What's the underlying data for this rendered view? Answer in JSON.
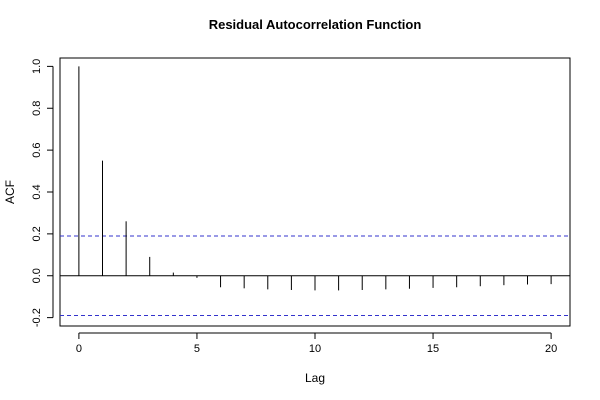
{
  "chart_data": {
    "type": "bar",
    "title": "Residual Autocorrelation Function",
    "xlabel": "Lag",
    "ylabel": "ACF",
    "xlim": [
      -0.8,
      20.8
    ],
    "ylim": [
      -0.24,
      1.04
    ],
    "x_ticks": [
      0,
      5,
      10,
      15,
      20
    ],
    "x_tick_labels": [
      "0",
      "5",
      "10",
      "15",
      "20"
    ],
    "y_ticks": [
      -0.2,
      0.0,
      0.2,
      0.4,
      0.6,
      0.8,
      1.0
    ],
    "y_tick_labels": [
      "-0.2",
      "0.0",
      "0.2",
      "0.4",
      "0.6",
      "0.8",
      "1.0"
    ],
    "lags": [
      0,
      1,
      2,
      3,
      4,
      5,
      6,
      7,
      8,
      9,
      10,
      11,
      12,
      13,
      14,
      15,
      16,
      17,
      18,
      19,
      20
    ],
    "acf": [
      1.0,
      0.55,
      0.26,
      0.09,
      0.015,
      -0.01,
      -0.055,
      -0.06,
      -0.065,
      -0.068,
      -0.07,
      -0.07,
      -0.068,
      -0.065,
      -0.062,
      -0.058,
      -0.055,
      -0.05,
      -0.045,
      -0.042,
      -0.04
    ],
    "confidence_bounds": [
      0.19,
      -0.19
    ],
    "colors": {
      "bars": "#000000",
      "confidence": "#3333cc",
      "axes": "#000000",
      "zero_line": "#000000"
    }
  }
}
